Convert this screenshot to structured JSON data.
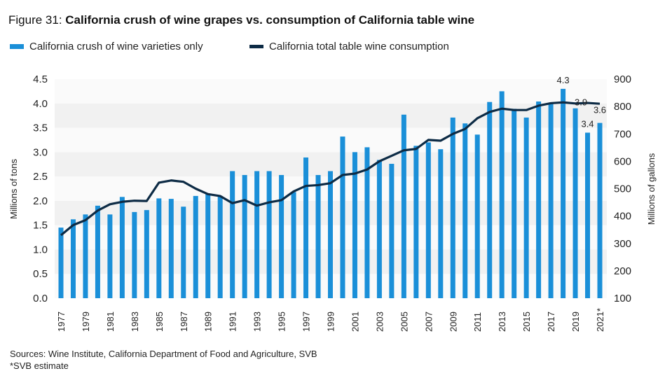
{
  "title_prefix": "Figure 31:",
  "title": "California crush of wine grapes vs. consumption of California table wine",
  "sources": "Sources: Wine Institute, California Department of Food and Agriculture, SVB",
  "footnote": "*SVB estimate",
  "chart_data": {
    "type": "bar+line",
    "categories": [
      "1977",
      "1978",
      "1979",
      "1980",
      "1981",
      "1982",
      "1983",
      "1984",
      "1985",
      "1986",
      "1987",
      "1988",
      "1989",
      "1990",
      "1991",
      "1992",
      "1993",
      "1994",
      "1995",
      "1996",
      "1997",
      "1998",
      "1999",
      "2000",
      "2001",
      "2002",
      "2003",
      "2004",
      "2005",
      "2006",
      "2007",
      "2008",
      "2009",
      "2010",
      "2011",
      "2012",
      "2013",
      "2014",
      "2015",
      "2016",
      "2017",
      "2018",
      "2019",
      "2020",
      "2021*"
    ],
    "series": [
      {
        "name": "California crush of wine varieties only",
        "type": "bar",
        "axis": "left",
        "color": "#1a8fd8",
        "values": [
          1.45,
          1.62,
          1.72,
          1.9,
          1.72,
          2.08,
          1.77,
          1.81,
          2.05,
          2.04,
          1.88,
          2.1,
          2.14,
          2.1,
          2.61,
          2.53,
          2.61,
          2.61,
          2.53,
          2.18,
          2.89,
          2.53,
          2.61,
          3.32,
          3.0,
          3.1,
          2.84,
          2.76,
          3.77,
          3.13,
          3.2,
          3.06,
          3.71,
          3.59,
          3.36,
          4.03,
          4.25,
          3.89,
          3.71,
          4.04,
          4.0,
          4.3,
          3.9,
          3.4,
          3.6
        ]
      },
      {
        "name": "California total table wine consumption",
        "type": "line",
        "axis": "right",
        "color": "#0d2b45",
        "values": [
          330,
          367,
          385,
          420,
          443,
          452,
          456,
          455,
          522,
          530,
          525,
          500,
          480,
          473,
          447,
          458,
          438,
          450,
          458,
          490,
          510,
          513,
          520,
          550,
          555,
          570,
          600,
          620,
          640,
          645,
          678,
          675,
          700,
          718,
          757,
          780,
          792,
          787,
          787,
          803,
          812,
          815,
          811,
          813,
          810
        ]
      }
    ],
    "data_labels": [
      {
        "category": "2018",
        "text": "4.3"
      },
      {
        "category": "2019",
        "text": "3.9"
      },
      {
        "category": "2020",
        "text": "3.4"
      },
      {
        "category": "2021*",
        "text": "3.6"
      }
    ],
    "ylabel": "Millions of tons",
    "ylim": [
      0,
      4.5
    ],
    "yticks": [
      "0.0",
      "0.5",
      "1.0",
      "1.5",
      "2.0",
      "2.5",
      "3.0",
      "3.5",
      "4.0",
      "4.5"
    ],
    "y2label": "Millions of gallons",
    "y2lim": [
      100,
      900
    ],
    "y2ticks": [
      "100",
      "200",
      "300",
      "400",
      "500",
      "600",
      "700",
      "800",
      "900"
    ],
    "legend": "top-left",
    "grid": "alternating bands"
  }
}
